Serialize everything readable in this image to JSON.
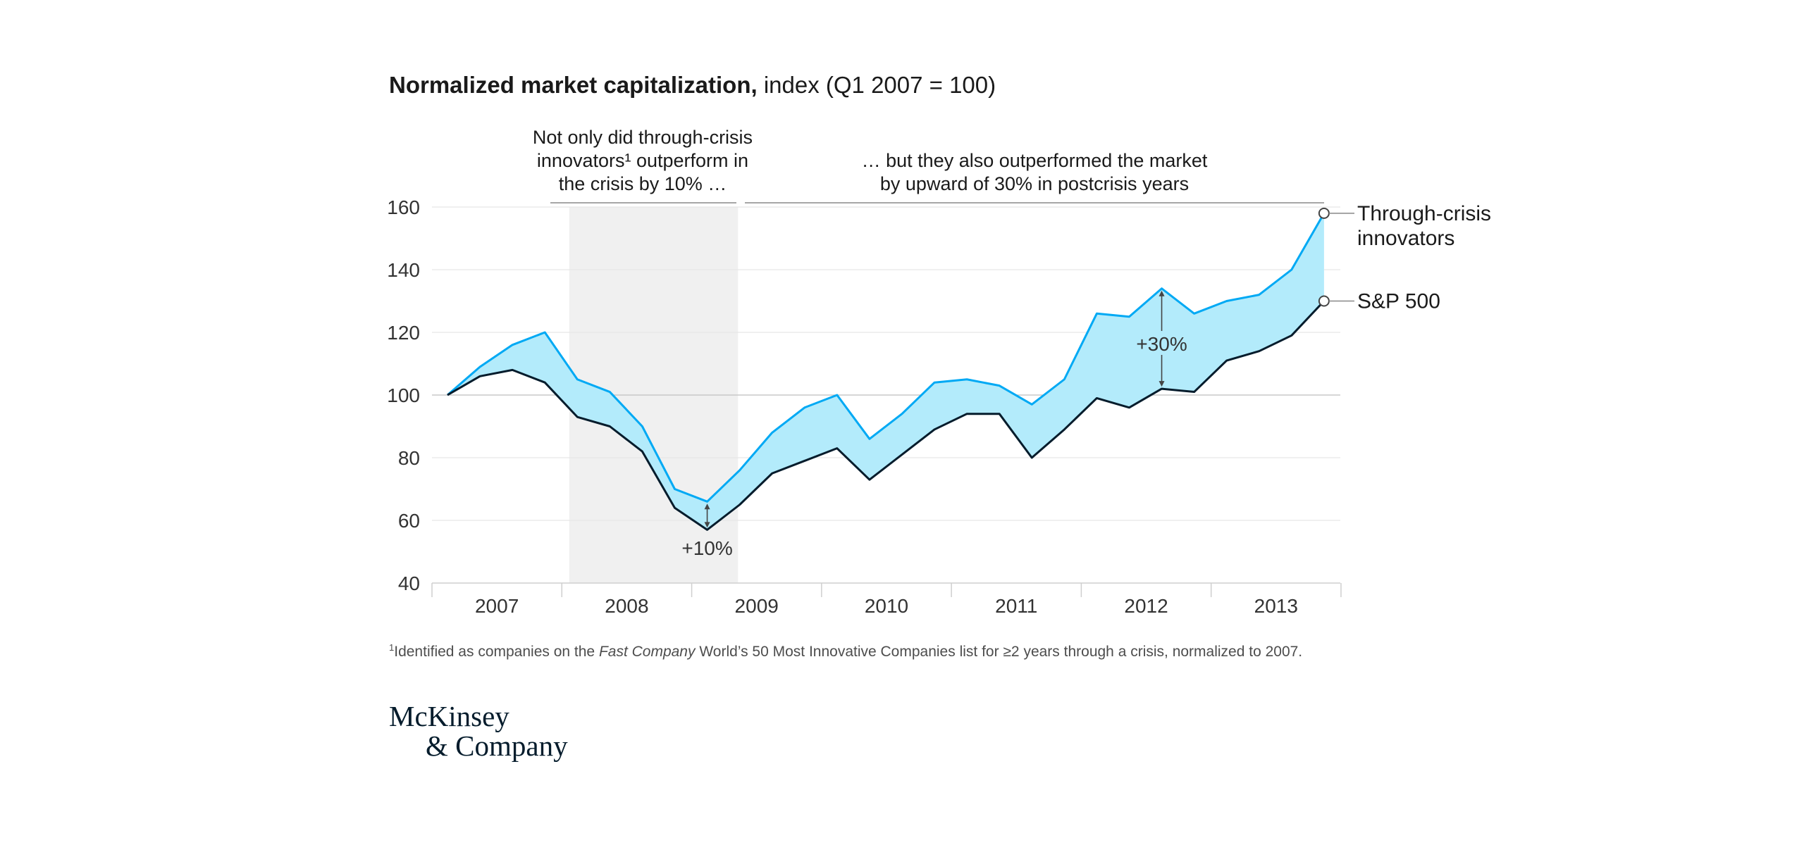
{
  "header": {
    "title_bold": "Normalized market capitalization,",
    "title_rest": " index (Q1 2007 = 100)"
  },
  "annotations": {
    "crisis_text": [
      "Not only did through-crisis",
      "innovators¹ outperform in",
      "the crisis by 10% …"
    ],
    "postcrisis_text": [
      "… but they also outperformed the market",
      "by upward of 30% in postcrisis years"
    ],
    "gap_crisis": "+10%",
    "gap_postcrisis": "+30%"
  },
  "footnote": {
    "marker": "1",
    "before": "Identified as companies on the ",
    "italic": "Fast Company",
    "after": " World’s 50 Most Innovative Companies list for ≥2 years through a crisis, normalized to 2007."
  },
  "logo": {
    "line1": "McKinsey",
    "line2": "& Company"
  },
  "chart_data": {
    "type": "line",
    "x_unit": "quarter",
    "x": [
      "Q1 2007",
      "Q2 2007",
      "Q3 2007",
      "Q4 2007",
      "Q1 2008",
      "Q2 2008",
      "Q3 2008",
      "Q4 2008",
      "Q1 2009",
      "Q2 2009",
      "Q3 2009",
      "Q4 2009",
      "Q1 2010",
      "Q2 2010",
      "Q3 2010",
      "Q4 2010",
      "Q1 2011",
      "Q2 2011",
      "Q3 2011",
      "Q4 2011",
      "Q1 2012",
      "Q2 2012",
      "Q3 2012",
      "Q4 2012",
      "Q1 2013",
      "Q2 2013",
      "Q3 2013",
      "Q4 2013",
      "Q1 2014"
    ],
    "series": [
      {
        "name": "Through-crisis innovators",
        "color": "#00a9f4",
        "values": [
          100,
          109,
          116,
          120,
          105,
          101,
          90,
          70,
          66,
          76,
          88,
          96,
          100,
          86,
          94,
          104,
          105,
          103,
          97,
          105,
          126,
          125,
          134,
          126,
          130,
          132,
          140,
          158,
          null
        ]
      },
      {
        "name": "S&P 500",
        "color": "#051c2c",
        "values": [
          100,
          106,
          108,
          104,
          93,
          90,
          82,
          64,
          57,
          65,
          75,
          79,
          83,
          73,
          81,
          89,
          94,
          94,
          80,
          89,
          99,
          96,
          102,
          101,
          111,
          114,
          119,
          130,
          null
        ]
      }
    ],
    "legend_labels": [
      [
        "Through-crisis",
        "innovators"
      ],
      [
        "S&P 500"
      ]
    ],
    "fill_color": "#b3ebfb",
    "crisis_shade": {
      "from": "Q4 2007 mid",
      "to": "Q1 2009 end",
      "color": "#f0f0f0"
    },
    "xlabel": "",
    "ylabel": "",
    "year_labels": [
      "2007",
      "2008",
      "2009",
      "2010",
      "2011",
      "2012",
      "2013"
    ],
    "y_ticks": [
      40,
      60,
      80,
      100,
      120,
      140,
      160
    ],
    "ylim": [
      40,
      160
    ],
    "grid": true
  }
}
